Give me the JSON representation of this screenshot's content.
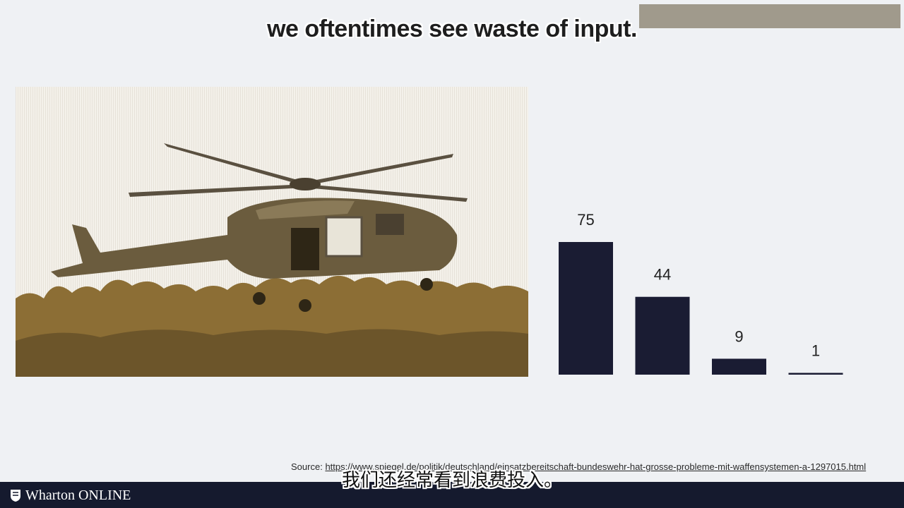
{
  "subtitle_en": "we oftentimes see waste of input.",
  "subtitle_zh": "我们还经常看到浪费投入。",
  "source": {
    "label": "Source:",
    "url": "https://www.spiegel.de/politik/deutschland/einsatzbereitschaft-bundeswehr-hat-grosse-probleme-mit-waffensystemen-a-1297015.html"
  },
  "footer": {
    "logo_text": "Wharton ONLINE"
  },
  "photo": {
    "subject": "military helicopter hovering over trees"
  },
  "colors": {
    "bar": "#1a1c33",
    "footer": "#151a2e",
    "photo_tint": "#8c6e35"
  },
  "chart_data": {
    "type": "bar",
    "categories": [
      "",
      "",
      "",
      ""
    ],
    "values": [
      75,
      44,
      9,
      1
    ],
    "data_labels": [
      "75",
      "44",
      "9",
      "1"
    ],
    "title": "",
    "xlabel": "",
    "ylabel": "",
    "ylim": [
      0,
      75
    ],
    "grid": false
  }
}
